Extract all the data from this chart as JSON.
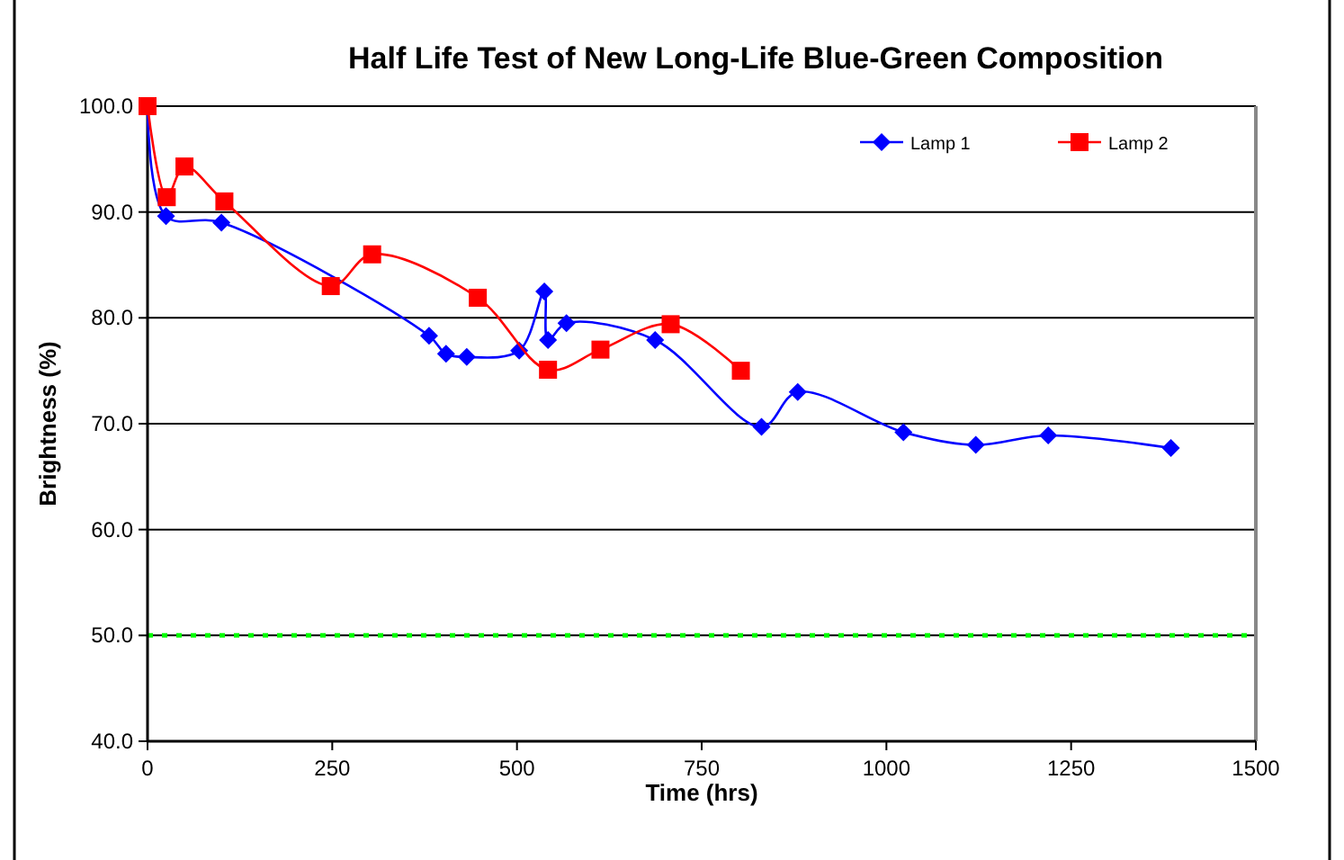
{
  "chart_data": {
    "type": "line",
    "title": "Half Life Test of New Long-Life Blue-Green Composition",
    "xlabel": "Time (hrs)",
    "ylabel": "Brightness (%)",
    "xlim": [
      0,
      1500
    ],
    "xticks": [
      0,
      250,
      500,
      750,
      1000,
      1250,
      1500
    ],
    "ylim": [
      40,
      100
    ],
    "yticks": [
      {
        "value": 40,
        "label": "40.0"
      },
      {
        "value": 50,
        "label": "50.0"
      },
      {
        "value": 60,
        "label": "60.0"
      },
      {
        "value": 70,
        "label": "70.0"
      },
      {
        "value": 80,
        "label": "80.0"
      },
      {
        "value": 90,
        "label": "90.0"
      },
      {
        "value": 100,
        "label": "100.0"
      }
    ],
    "grid": "y",
    "legend": "top right",
    "series": [
      {
        "name": "Lamp 1",
        "color": "#0000ff",
        "marker": "diamond",
        "x": [
          0,
          25,
          100,
          381,
          404,
          432,
          503,
          537,
          542,
          567,
          687,
          831,
          880,
          1023,
          1121,
          1219,
          1385
        ],
        "values": [
          100,
          89.6,
          89.0,
          78.3,
          76.6,
          76.3,
          76.9,
          82.5,
          77.9,
          79.5,
          77.9,
          69.7,
          73.0,
          69.2,
          68.0,
          68.9,
          67.7
        ]
      },
      {
        "name": "Lamp 2",
        "color": "#ff0000",
        "marker": "square",
        "x": [
          0,
          26,
          50,
          104,
          248,
          304,
          447,
          542,
          613,
          708,
          803
        ],
        "values": [
          100,
          91.4,
          94.3,
          91.0,
          83.0,
          86.0,
          81.9,
          75.1,
          77.0,
          79.4,
          75.0
        ]
      }
    ],
    "ref_lines": [
      {
        "axis": "y",
        "value": 50,
        "color": "#00ff00",
        "line_style": "dotted"
      }
    ]
  }
}
